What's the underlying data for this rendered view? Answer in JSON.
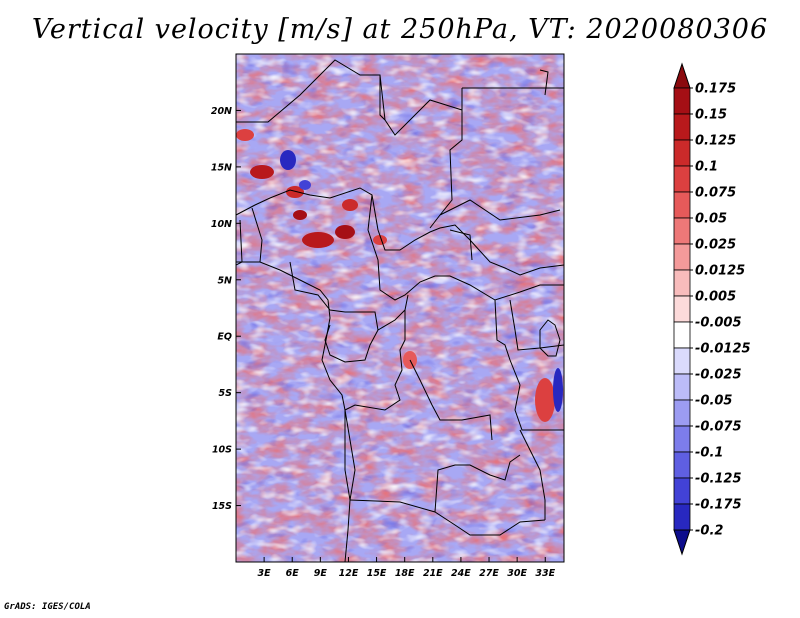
{
  "title": "Vertical velocity [m/s] at 250hPa, VT: 2020080306",
  "footer": "GrADS: IGES/COLA",
  "map": {
    "lat_range": [
      -20,
      25
    ],
    "lon_range": [
      0,
      35
    ],
    "lat_ticks": [
      {
        "value": 20,
        "label": "20N"
      },
      {
        "value": 15,
        "label": "15N"
      },
      {
        "value": 10,
        "label": "10N"
      },
      {
        "value": 5,
        "label": "5N"
      },
      {
        "value": 0,
        "label": "EQ"
      },
      {
        "value": -5,
        "label": "5S"
      },
      {
        "value": -10,
        "label": "10S"
      },
      {
        "value": -15,
        "label": "15S"
      }
    ],
    "lon_ticks": [
      {
        "value": 3,
        "label": "3E"
      },
      {
        "value": 6,
        "label": "6E"
      },
      {
        "value": 9,
        "label": "9E"
      },
      {
        "value": 12,
        "label": "12E"
      },
      {
        "value": 15,
        "label": "15E"
      },
      {
        "value": 18,
        "label": "18E"
      },
      {
        "value": 21,
        "label": "21E"
      },
      {
        "value": 24,
        "label": "24E"
      },
      {
        "value": 27,
        "label": "27E"
      },
      {
        "value": 30,
        "label": "30E"
      },
      {
        "value": 33,
        "label": "33E"
      }
    ]
  },
  "colorbar": {
    "levels": [
      {
        "label": "0.175",
        "color": "#a50f15"
      },
      {
        "label": "0.15",
        "color": "#b8191c"
      },
      {
        "label": "0.125",
        "color": "#cb2a2a"
      },
      {
        "label": "0.1",
        "color": "#dc4040"
      },
      {
        "label": "0.075",
        "color": "#e65a5a"
      },
      {
        "label": "0.05",
        "color": "#ee7878"
      },
      {
        "label": "0.025",
        "color": "#f49a9a"
      },
      {
        "label": "0.0125",
        "color": "#f8bcbc"
      },
      {
        "label": "0.005",
        "color": "#fcdada"
      },
      {
        "label": "-0.005",
        "color": "#ffffff"
      },
      {
        "label": "-0.0125",
        "color": "#dadafc"
      },
      {
        "label": "-0.025",
        "color": "#bcbcf8"
      },
      {
        "label": "-0.05",
        "color": "#9c9cf2"
      },
      {
        "label": "-0.075",
        "color": "#7d7deb"
      },
      {
        "label": "-0.1",
        "color": "#5f5fe2"
      },
      {
        "label": "-0.125",
        "color": "#4242d6"
      },
      {
        "label": "-0.175",
        "color": "#2828c0"
      },
      {
        "label": "-0.2",
        "color": "#1414a6"
      }
    ],
    "top_arrow_color": "#8b0a0e",
    "bottom_arrow_color": "#0d0d8c"
  }
}
